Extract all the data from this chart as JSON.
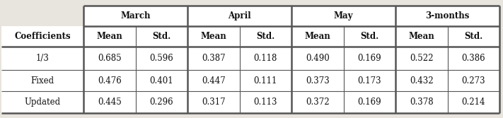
{
  "col_groups": [
    "March",
    "April",
    "May",
    "3-months"
  ],
  "row_labels": [
    "Coefficients",
    "1/3",
    "Fixed",
    "Updated"
  ],
  "table_data": [
    [
      "0.685",
      "0.596",
      "0.387",
      "0.118",
      "0.490",
      "0.169",
      "0.522",
      "0.386"
    ],
    [
      "0.476",
      "0.401",
      "0.447",
      "0.111",
      "0.373",
      "0.173",
      "0.432",
      "0.273"
    ],
    [
      "0.445",
      "0.296",
      "0.317",
      "0.113",
      "0.372",
      "0.169",
      "0.378",
      "0.214"
    ]
  ],
  "bg_color": "#e8e4de",
  "cell_color": "#ffffff",
  "line_color": "#555555",
  "font_color": "#111111",
  "header_font_color": "#111111",
  "figsize": [
    7.11,
    1.67
  ],
  "dpi": 100
}
